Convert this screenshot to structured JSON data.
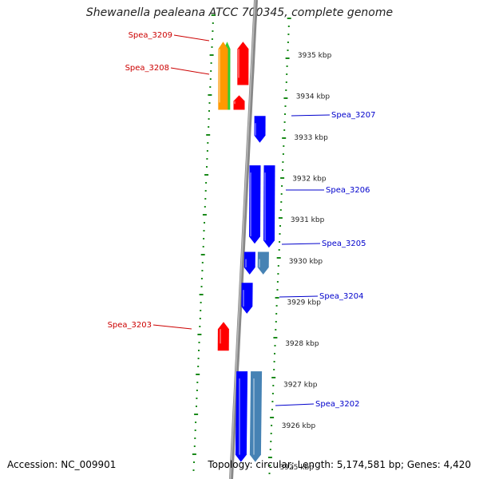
{
  "title": "Shewanella pealeana ATCC 700345, complete genome",
  "footer": {
    "accession": "Accession: NC_009901",
    "summary": "Topology: circular; Length: 5,174,581 bp; Genes: 4,420"
  },
  "colors": {
    "forward_gene": "#ff0000",
    "reverse_gene": "#0000ff",
    "reverse_gene_alt": "#4682b4",
    "rna_green": "#33cc33",
    "rna_orange": "#ff9900",
    "tick_green": "#1a8a1a",
    "backbone": "#888888",
    "label_forward": "#cc0000",
    "label_reverse": "#0000cc"
  },
  "scale": {
    "unit": "kbp",
    "ticks": [
      {
        "kbp": 3935,
        "label": "3935 kbp"
      },
      {
        "kbp": 3934,
        "label": "3934 kbp"
      },
      {
        "kbp": 3933,
        "label": "3933 kbp"
      },
      {
        "kbp": 3932,
        "label": "3932 kbp"
      },
      {
        "kbp": 3931,
        "label": "3931 kbp"
      },
      {
        "kbp": 3930,
        "label": "3930 kbp"
      },
      {
        "kbp": 3929,
        "label": "3929 kbp"
      },
      {
        "kbp": 3928,
        "label": "3928 kbp"
      },
      {
        "kbp": 3927,
        "label": "3927 kbp"
      },
      {
        "kbp": 3926,
        "label": "3926 kbp"
      },
      {
        "kbp": 3925,
        "label": "3925 kbp"
      }
    ]
  },
  "features": [
    {
      "id": "f1",
      "strand": "forward",
      "color": "rna_green",
      "start": 3933.65,
      "end": 3935.3,
      "labelled": true,
      "label": "Spea_3209"
    },
    {
      "id": "f2",
      "strand": "forward",
      "color": "rna_orange",
      "start": 3933.65,
      "end": 3935.3,
      "labelled": true,
      "label": "Spea_3208"
    },
    {
      "id": "f3",
      "strand": "forward",
      "color": "forward_gene",
      "start": 3934.25,
      "end": 3935.3,
      "labelled": false,
      "label": ""
    },
    {
      "id": "f4",
      "strand": "forward",
      "color": "forward_gene",
      "start": 3933.65,
      "end": 3934.0,
      "labelled": false,
      "label": ""
    },
    {
      "id": "r1",
      "strand": "reverse",
      "color": "reverse_gene",
      "start": 3932.85,
      "end": 3933.5,
      "labelled": true,
      "label": "Spea_3207"
    },
    {
      "id": "r2",
      "strand": "reverse",
      "color": "reverse_gene",
      "start": 3930.4,
      "end": 3932.3,
      "labelled": false,
      "label": ""
    },
    {
      "id": "r3",
      "strand": "reverse",
      "color": "reverse_gene",
      "start": 3930.3,
      "end": 3932.3,
      "labelled": true,
      "label": "Spea_3206"
    },
    {
      "id": "r4",
      "strand": "reverse",
      "color": "reverse_gene",
      "start": 3929.65,
      "end": 3930.2,
      "labelled": false,
      "label": ""
    },
    {
      "id": "r5",
      "strand": "reverse",
      "color": "reverse_gene_alt",
      "start": 3929.65,
      "end": 3930.2,
      "labelled": true,
      "label": "Spea_3205"
    },
    {
      "id": "r6",
      "strand": "reverse",
      "color": "reverse_gene",
      "start": 3928.7,
      "end": 3929.45,
      "labelled": true,
      "label": "Spea_3204"
    },
    {
      "id": "f5",
      "strand": "forward",
      "color": "forward_gene",
      "start": 3927.8,
      "end": 3928.5,
      "labelled": true,
      "label": "Spea_3203"
    },
    {
      "id": "r7",
      "strand": "reverse",
      "color": "reverse_gene",
      "start": 3925.1,
      "end": 3927.3,
      "labelled": false,
      "label": ""
    },
    {
      "id": "r8",
      "strand": "reverse",
      "color": "reverse_gene_alt",
      "start": 3925.1,
      "end": 3927.3,
      "labelled": true,
      "label": "Spea_3202"
    }
  ]
}
